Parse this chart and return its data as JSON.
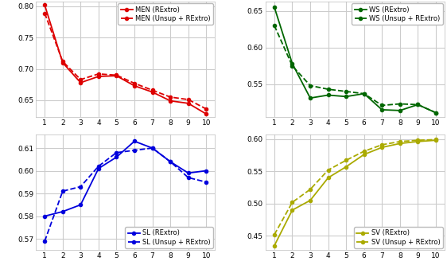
{
  "x": [
    1,
    2,
    3,
    4,
    5,
    6,
    7,
    8,
    9,
    10
  ],
  "MEN_rextro": [
    0.802,
    0.71,
    0.678,
    0.688,
    0.689,
    0.673,
    0.663,
    0.649,
    0.645,
    0.628
  ],
  "MEN_unsup": [
    0.789,
    0.712,
    0.683,
    0.692,
    0.69,
    0.677,
    0.666,
    0.655,
    0.651,
    0.636
  ],
  "WS_rextro": [
    0.655,
    0.578,
    0.531,
    0.535,
    0.533,
    0.537,
    0.515,
    0.514,
    0.522,
    0.511
  ],
  "WS_unsup": [
    0.63,
    0.575,
    0.548,
    0.543,
    0.54,
    0.537,
    0.521,
    0.523,
    0.522,
    0.511
  ],
  "SL_rextro": [
    0.58,
    0.582,
    0.585,
    0.601,
    0.606,
    0.613,
    0.61,
    0.604,
    0.599,
    0.6
  ],
  "SL_unsup": [
    0.569,
    0.591,
    0.593,
    0.602,
    0.608,
    0.609,
    0.61,
    0.604,
    0.597,
    0.595
  ],
  "SV_rextro": [
    0.435,
    0.49,
    0.505,
    0.54,
    0.557,
    0.576,
    0.587,
    0.593,
    0.596,
    0.598
  ],
  "SV_unsup": [
    0.452,
    0.502,
    0.522,
    0.552,
    0.567,
    0.581,
    0.591,
    0.596,
    0.598,
    0.599
  ],
  "MEN_ylim": [
    0.623,
    0.808
  ],
  "WS_ylim": [
    0.505,
    0.663
  ],
  "SL_ylim": [
    0.565,
    0.616
  ],
  "SV_ylim": [
    0.428,
    0.607
  ],
  "MEN_yticks": [
    0.65,
    0.7,
    0.75,
    0.8
  ],
  "WS_yticks": [
    0.55,
    0.6,
    0.65
  ],
  "SL_yticks": [
    0.57,
    0.58,
    0.59,
    0.6,
    0.61
  ],
  "SV_yticks": [
    0.45,
    0.5,
    0.55,
    0.6
  ],
  "color_red": "#dd0000",
  "color_green": "#006600",
  "color_blue": "#0000dd",
  "color_yellow": "#aaaa00",
  "legend_MEN": [
    "MEN (RExtro)",
    "MEN (Unsup + RExtro)"
  ],
  "legend_WS": [
    "WS (RExtro)",
    "WS (Unsup + RExtro)"
  ],
  "legend_SL": [
    "SL (RExtro)",
    "SL (Unsup + RExtro)"
  ],
  "legend_SV": [
    "SV (RExtro)",
    "SV (Unsup + RExtro)"
  ]
}
